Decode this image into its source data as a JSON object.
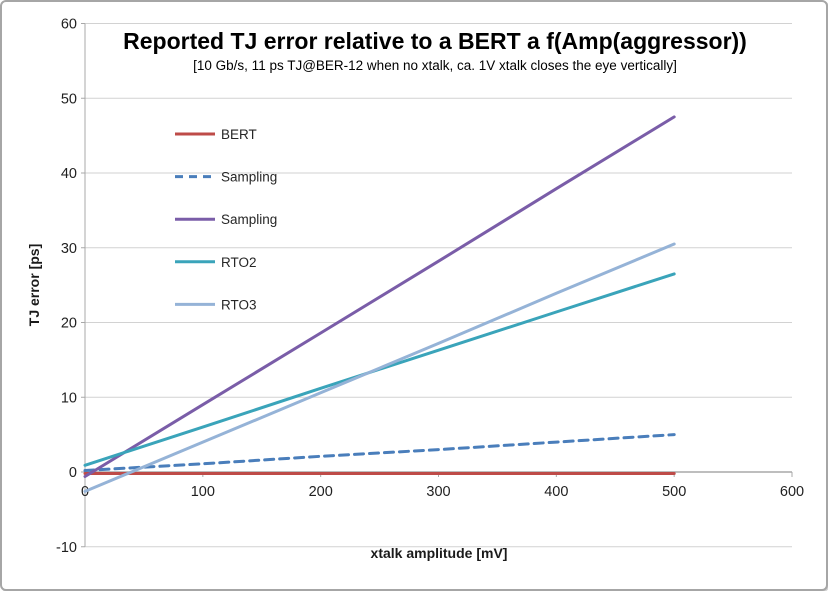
{
  "chart_data": {
    "type": "line",
    "title": "Reported TJ error relative to a BERT a f(Amp(aggressor))",
    "subtitle": "[10 Gb/s, 11 ps TJ@BER-12 when no xtalk, ca. 1V xtalk closes the eye vertically]",
    "xlabel": "xtalk amplitude [mV]",
    "ylabel": "TJ error [ps]",
    "x": [
      0,
      100,
      200,
      300,
      400,
      500
    ],
    "xlim": [
      0,
      600
    ],
    "ylim": [
      -10,
      60
    ],
    "xticks": [
      0,
      100,
      200,
      300,
      400,
      500,
      600
    ],
    "yticks": [
      -10,
      0,
      10,
      20,
      30,
      40,
      50,
      60
    ],
    "grid": true,
    "legend_position": "inside-top-left",
    "series": [
      {
        "name": "BERT",
        "color": "#be4b48",
        "style": "solid",
        "values": [
          -0.2,
          -0.2,
          -0.2,
          -0.2,
          -0.2,
          -0.2
        ]
      },
      {
        "name": "Sampling",
        "color": "#4a7ebb",
        "style": "dashed",
        "values": [
          0.2,
          1.1,
          2.1,
          3.0,
          4.0,
          5.0
        ]
      },
      {
        "name": "Sampling",
        "color": "#7a5da8",
        "style": "solid",
        "values": [
          -0.6,
          9.0,
          18.6,
          28.2,
          37.9,
          47.5
        ]
      },
      {
        "name": "RTO2",
        "color": "#3aa4ba",
        "style": "solid",
        "values": [
          0.9,
          6.0,
          11.2,
          16.3,
          21.4,
          26.5
        ]
      },
      {
        "name": "RTO3",
        "color": "#95b3d7",
        "style": "solid",
        "values": [
          -2.6,
          4.0,
          10.6,
          17.2,
          23.9,
          30.5
        ]
      }
    ],
    "gridline_color": "#d2d2d2",
    "axis_color": "#a8a8a8",
    "border_color": "#a6a6a6"
  }
}
